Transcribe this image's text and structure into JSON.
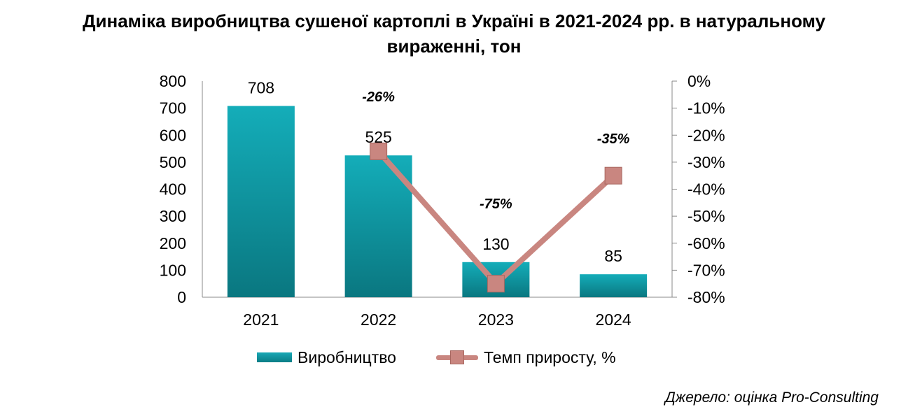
{
  "title_line1": "Динаміка виробництва сушеної картоплі в Україні в 2021-2024 рр. в натуральному",
  "title_line2": "вираженні, тон",
  "source": "Джерело: оцінка Pro-Consulting",
  "colors": {
    "bar": "#0a8f99",
    "line": "#c98680",
    "marker": "#c98680"
  },
  "chart_data": {
    "type": "bar",
    "categories": [
      "2021",
      "2022",
      "2023",
      "2024"
    ],
    "series": [
      {
        "name": "Виробництво",
        "type": "bar",
        "axis": "left",
        "values": [
          708,
          525,
          130,
          85
        ],
        "labels": [
          "708",
          "525",
          "130",
          "85"
        ]
      },
      {
        "name": "Темп приросту, %",
        "type": "line",
        "axis": "right",
        "values": [
          null,
          -26,
          -75,
          -35
        ],
        "labels": [
          "",
          "-26%",
          "-75%",
          "-35%"
        ]
      }
    ],
    "y_left": {
      "min": 0,
      "max": 800,
      "step": 100,
      "ticks": [
        "0",
        "100",
        "200",
        "300",
        "400",
        "500",
        "600",
        "700",
        "800"
      ]
    },
    "y_right": {
      "min": -80,
      "max": 0,
      "step": 10,
      "ticks": [
        "-80%",
        "-70%",
        "-60%",
        "-50%",
        "-40%",
        "-30%",
        "-20%",
        "-10%",
        "0%"
      ]
    },
    "legend_position": "bottom",
    "grid": false
  }
}
